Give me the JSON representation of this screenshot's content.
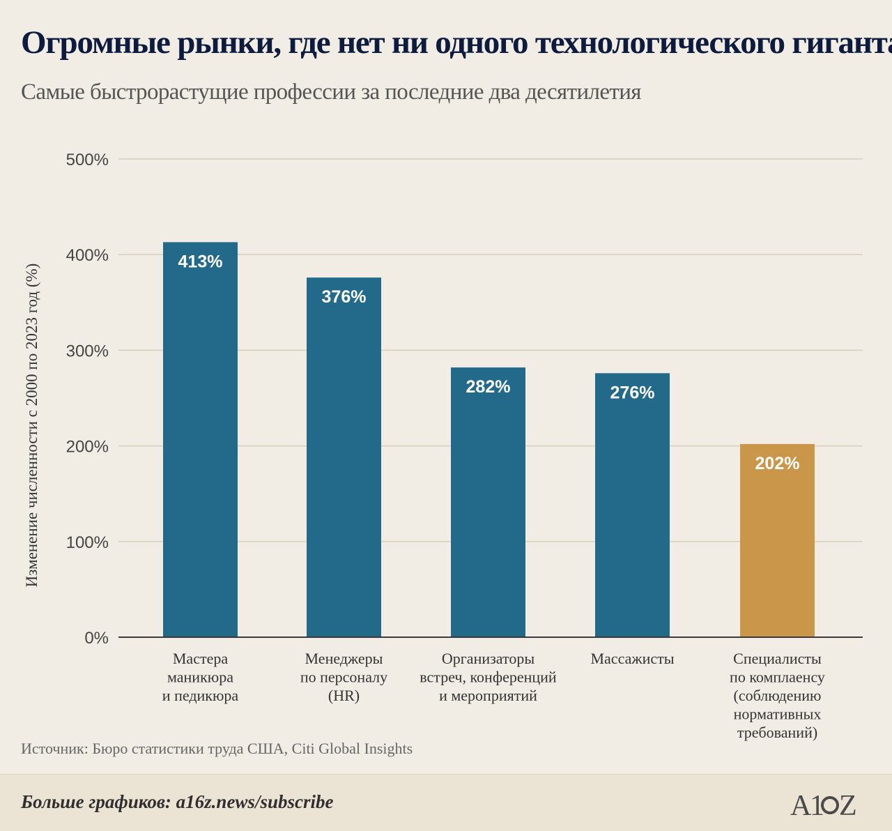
{
  "header": {
    "title": "Огромные рынки, где нет ни одного технологического гиганта",
    "subtitle": "Самые быстрорастущие профессии за последние два десятилетия"
  },
  "chart_data": {
    "type": "bar",
    "ylabel": "Изменение численности с 2000 по 2023 год (%)",
    "ylim": [
      0,
      500
    ],
    "yticks": [
      0,
      100,
      200,
      300,
      400,
      500
    ],
    "ytick_labels": [
      "0%",
      "100%",
      "200%",
      "300%",
      "400%",
      "500%"
    ],
    "grid": true,
    "categories": [
      [
        "Мастера",
        "маникюра",
        "и педикюра"
      ],
      [
        "Менеджеры",
        "по персоналу",
        "(HR)"
      ],
      [
        "Организаторы",
        "встреч, конференций",
        "и мероприятий"
      ],
      [
        "Массажисты"
      ],
      [
        "Специалисты",
        "по комплаенсу",
        "(соблюдению",
        "нормативных",
        "требований)"
      ]
    ],
    "values": [
      413,
      376,
      282,
      276,
      202
    ],
    "value_labels": [
      "413%",
      "376%",
      "282%",
      "276%",
      "202%"
    ],
    "colors": [
      "#236a8a",
      "#236a8a",
      "#236a8a",
      "#236a8a",
      "#c9964a"
    ]
  },
  "source": "Источник: Бюро статистики труда США, Citi Global Insights",
  "footer": {
    "text": "Больше графиков: a16z.news/subscribe",
    "logo": "A16Z"
  }
}
